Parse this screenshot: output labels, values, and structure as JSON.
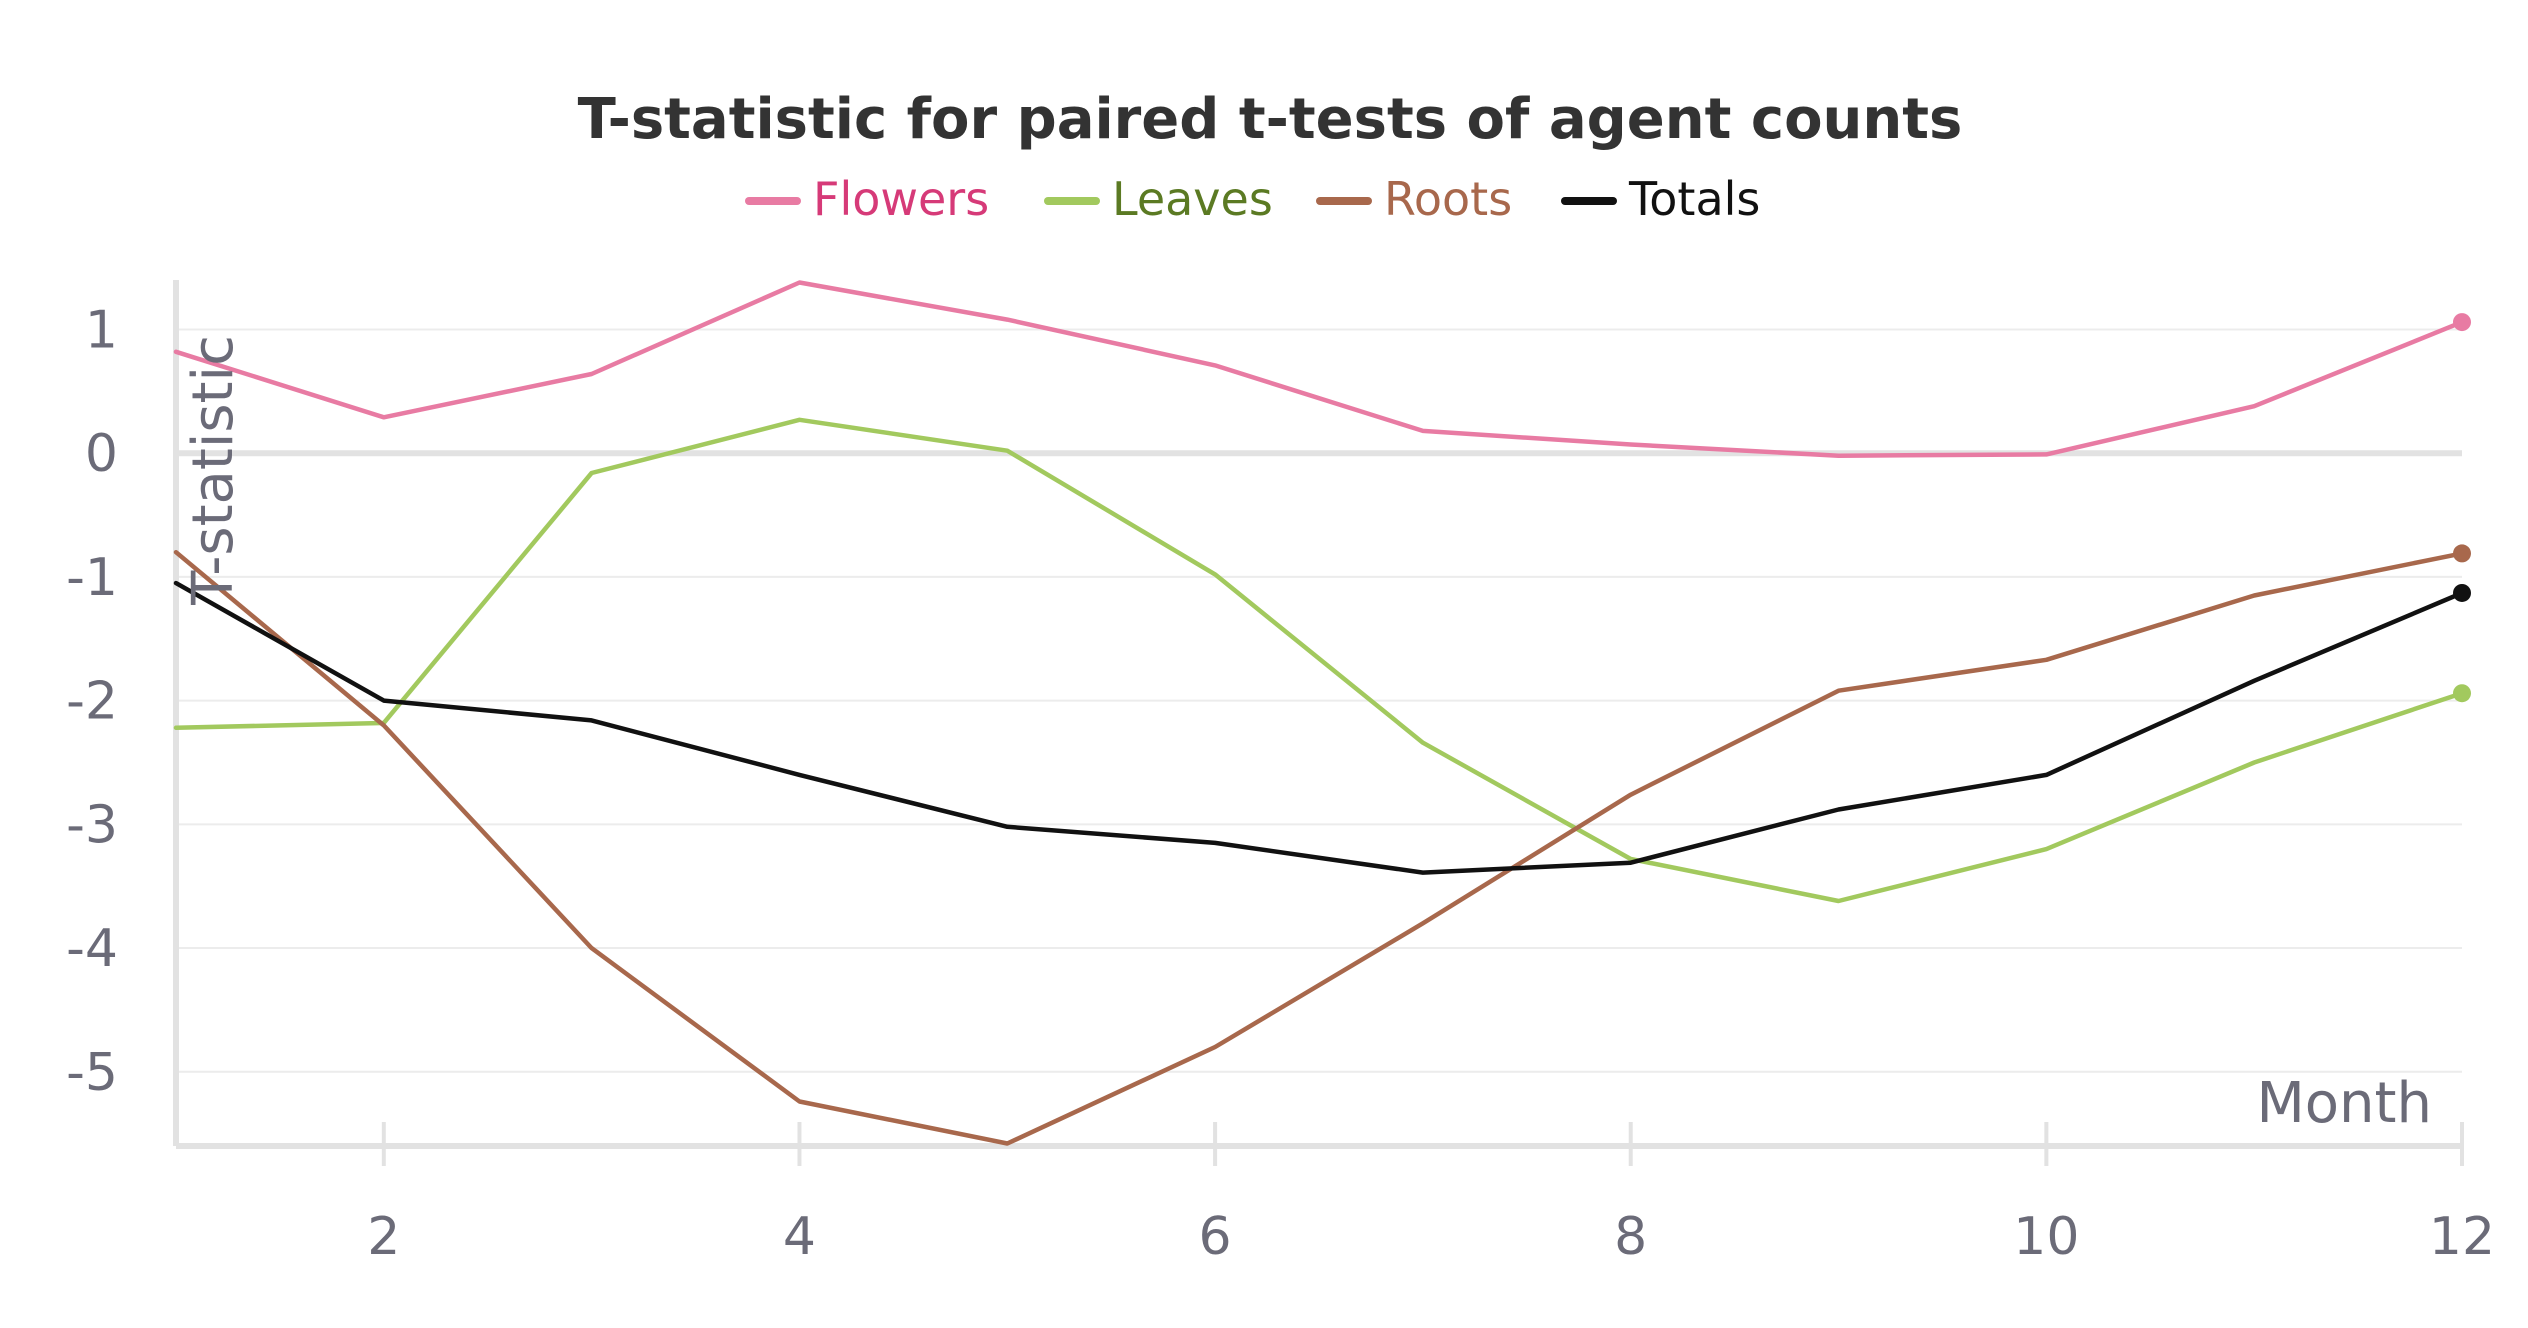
{
  "chart_data": {
    "type": "line",
    "title": "T-statistic for paired t-tests of agent counts",
    "xlabel": "Month",
    "ylabel": "T-statistic",
    "x": [
      1,
      2,
      3,
      4,
      5,
      6,
      7,
      8,
      9,
      10,
      11,
      12
    ],
    "xticks": [
      "2",
      "4",
      "6",
      "8",
      "10",
      "12"
    ],
    "yticks": [
      "1",
      "0",
      "-1",
      "-2",
      "-3",
      "-4",
      "-5"
    ],
    "xlim": [
      1,
      12
    ],
    "ylim": [
      -5.6,
      1.4
    ],
    "grid": "horizontal",
    "legend": "top-center",
    "series": [
      {
        "name": "Flowers",
        "color": "#e87ba3",
        "label_color": "#d63a78",
        "values": [
          0.82,
          0.29,
          0.64,
          1.38,
          1.08,
          0.71,
          0.18,
          0.07,
          -0.02,
          -0.01,
          0.38,
          1.06
        ]
      },
      {
        "name": "Leaves",
        "color": "#a2c95e",
        "label_color": "#5b7a23",
        "values": [
          -2.22,
          -2.18,
          -0.16,
          0.27,
          0.02,
          -0.98,
          -2.34,
          -3.28,
          -3.62,
          -3.2,
          -2.5,
          -1.94
        ]
      },
      {
        "name": "Roots",
        "color": "#a8684c",
        "label_color": "#a8684c",
        "values": [
          -0.8,
          -2.2,
          -4.0,
          -5.24,
          -5.58,
          -4.8,
          -3.8,
          -2.76,
          -1.92,
          -1.67,
          -1.15,
          -0.81
        ]
      },
      {
        "name": "Totals",
        "color": "#111111",
        "label_color": "#111111",
        "values": [
          -1.05,
          -2.0,
          -2.16,
          -2.6,
          -3.02,
          -3.15,
          -3.39,
          -3.31,
          -2.88,
          -2.6,
          -1.84,
          -1.13
        ]
      }
    ]
  }
}
